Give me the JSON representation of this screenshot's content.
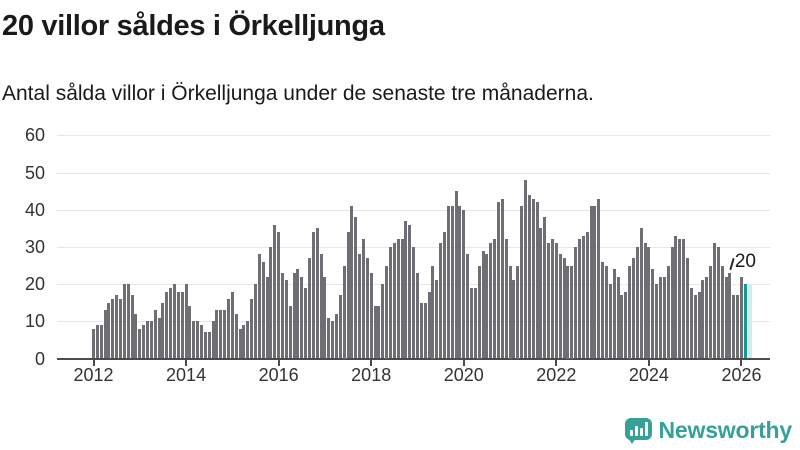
{
  "header": {
    "title": "20 villor såldes i Örkelljunga",
    "subtitle": "Antal sålda villor i Örkelljunga under de senaste tre månaderna."
  },
  "chart_data": {
    "type": "bar",
    "title": "20 villor såldes i Örkelljunga",
    "subtitle": "Antal sålda villor i Örkelljunga under de senaste tre månaderna.",
    "x_start": "2012-01",
    "x_frequency": "monthly",
    "ylim": [
      0,
      60
    ],
    "yticks": [
      0,
      10,
      20,
      30,
      40,
      50,
      60
    ],
    "xticks": [
      2012,
      2014,
      2016,
      2018,
      2020,
      2022,
      2024,
      2026
    ],
    "grid": true,
    "legend": "none",
    "values": [
      8,
      9,
      9,
      13,
      15,
      16,
      17,
      16,
      20,
      20,
      17,
      12,
      8,
      9,
      10,
      10,
      13,
      11,
      15,
      18,
      19,
      20,
      18,
      18,
      20,
      14,
      10,
      10,
      9,
      7,
      7,
      10,
      13,
      13,
      13,
      16,
      18,
      12,
      8,
      9,
      10,
      16,
      20,
      28,
      26,
      22,
      30,
      36,
      34,
      23,
      21,
      14,
      23,
      24,
      22,
      19,
      27,
      34,
      35,
      28,
      22,
      11,
      10,
      12,
      17,
      25,
      34,
      41,
      38,
      28,
      32,
      27,
      23,
      14,
      14,
      20,
      25,
      30,
      31,
      32,
      32,
      37,
      36,
      30,
      23,
      15,
      15,
      18,
      25,
      21,
      31,
      34,
      41,
      41,
      45,
      41,
      40,
      28,
      19,
      19,
      25,
      29,
      28,
      31,
      32,
      42,
      43,
      32,
      25,
      21,
      25,
      41,
      48,
      44,
      43,
      42,
      35,
      38,
      31,
      32,
      31,
      28,
      27,
      25,
      25,
      30,
      32,
      33,
      34,
      41,
      41,
      43,
      26,
      25,
      20,
      24,
      22,
      17,
      18,
      25,
      27,
      30,
      35,
      31,
      30,
      24,
      20,
      22,
      22,
      25,
      30,
      33,
      32,
      32,
      27,
      19,
      17,
      18,
      21,
      22,
      25,
      31,
      30,
      25,
      22,
      23,
      17,
      17,
      22,
      20
    ],
    "highlight": {
      "position": "last",
      "value": 20,
      "label": "20"
    },
    "colors": {
      "bar": "#6e6e74",
      "highlight_bar": "#139a93",
      "highlight_ghost": "#cdeeec",
      "gridline": "#e7e7e7",
      "axis": "#4c4c4c",
      "tick_text": "#333333"
    }
  },
  "branding": {
    "name": "Newsworthy",
    "icon": "newsworthy-bubble-chart-icon",
    "color": "#35a199"
  }
}
